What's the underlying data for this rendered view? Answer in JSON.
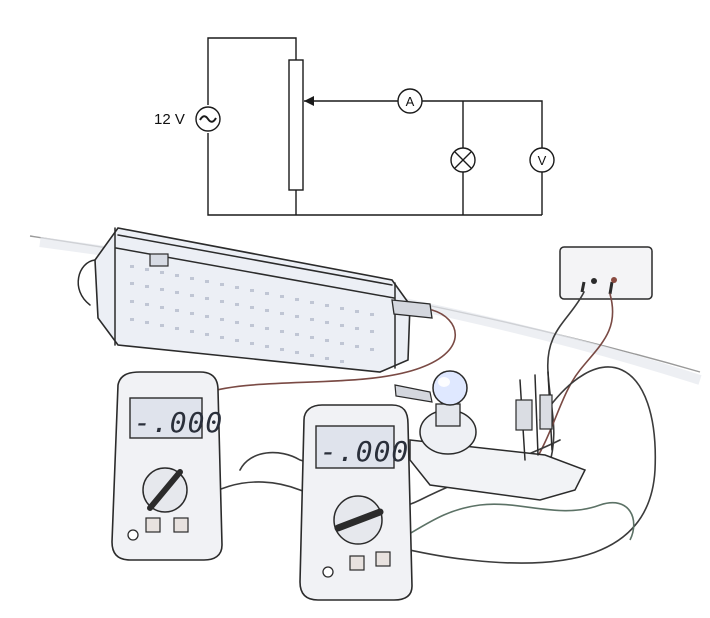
{
  "circuit": {
    "source_label": "12 V",
    "ammeter_label": "A",
    "voltmeter_label": "V"
  },
  "photo": {
    "meter_left_display": "-.000",
    "meter_right_display": "-.000"
  }
}
